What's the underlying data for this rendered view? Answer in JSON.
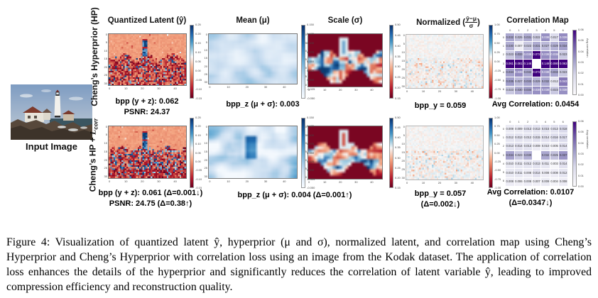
{
  "figure_caption": "Figure 4: Visualization of quantized latent ŷ, hyperprior (μ and σ), normalized latent, and correlation map using Cheng’s Hyperprior and Cheng’s Hyperprior with correlation loss using an image from the Kodak dataset. The application of correlation loss enhances the details of the hyperprior and significantly reduces the correlation of latent variable ŷ, leading to improved compression efficiency and reconstruction quality.",
  "input_image": {
    "label": "Input Image"
  },
  "rows": {
    "top": {
      "label": "Cheng’s Hyperprior (HP)"
    },
    "bottom": {
      "label_prefix": "Cheng’s HP + ",
      "label_L": "L",
      "label_sub": "corr"
    }
  },
  "column_titles": {
    "quantized": "Quantized Latent (ŷ)",
    "mean": "Mean (μ)",
    "scale": "Scale (σ)",
    "normalized_prefix": "Normalized (",
    "normalized_num": "ŷ−μ",
    "normalized_den": "σ",
    "normalized_suffix": ")",
    "correlation": "Correlation Map"
  },
  "metrics": {
    "top": {
      "bpp_total": "bpp (y + z): 0.062",
      "psnr": "PSNR: 24.37",
      "bpp_z": "bpp_z (μ + σ): 0.003",
      "bpp_y": "bpp_y = 0.059",
      "avg_corr": "Avg Correlation: 0.0454"
    },
    "bottom": {
      "bpp_total": "bpp (y + z): 0.061 ",
      "bpp_total_delta": "(Δ=0.001↓)",
      "psnr": "PSNR: 24.75 ",
      "psnr_delta": "(Δ=0.38↑)",
      "bpp_z": "bpp_z (μ + σ): 0.004 ",
      "bpp_z_delta": "(Δ=0.001↑)",
      "bpp_y": "bpp_y = 0.057",
      "bpp_y_delta": "(Δ=0.002↓)",
      "avg_corr": "Avg Correlation: 0.0107",
      "avg_corr_delta": "(Δ=0.0347↓)"
    }
  },
  "axes": {
    "heatmap_x_ticks": [
      0,
      10,
      20,
      30,
      40
    ],
    "heatmap_y_ticks": [
      0,
      5,
      10,
      15,
      20,
      25,
      30
    ],
    "corr_axis_ticks": [
      0,
      1,
      2,
      3,
      4,
      5,
      6
    ]
  },
  "colorbars": {
    "quantized_ticks": [
      "0.25",
      "0.20",
      "0.15",
      "0.10",
      "0.05",
      "0.00",
      "-0.05",
      "-0.10",
      "-0.15"
    ],
    "mean_ticks": [
      "0.150",
      "0.125",
      "0.100",
      "0.075",
      "0.050",
      "0.025",
      "0.000",
      "-0.025",
      "-0.050"
    ],
    "scale_ticks": [
      "0.50",
      "0.45",
      "0.40",
      "0.35",
      "0.30",
      "0.25",
      "0.20",
      "0.15"
    ],
    "normalized_ticks": [
      "1.00",
      "0.75",
      "0.50",
      "0.25",
      "0.00",
      "-0.25",
      "-0.50",
      "-0.75",
      "-1.00"
    ],
    "correlation_ticks": [
      "0.06",
      "0.05",
      "0.04",
      "0.03",
      "0.02",
      "0.01",
      "0.00"
    ],
    "correlation_label": "Avg correlation"
  },
  "correlation_maps": {
    "top": {
      "max": 0.06,
      "values": [
        [
          0.032,
          0.025,
          0.031,
          0.022,
          0.038,
          0.017,
          0.039
        ],
        [
          0.03,
          0.007,
          0.023,
          0.031,
          0.027,
          0.029,
          0.034
        ],
        [
          0.023,
          0.033,
          0.038,
          0.072,
          0.039,
          0.038,
          0.023
        ],
        [
          0.061,
          0.081,
          0.146,
          null,
          0.149,
          0.08,
          0.063
        ],
        [
          0.034,
          0.039,
          0.032,
          0.072,
          0.038,
          0.033,
          0.023
        ],
        [
          0.035,
          0.027,
          0.033,
          0.029,
          0.032,
          0.012,
          0.043
        ],
        [
          0.023,
          0.03,
          0.034,
          0.038,
          0.038,
          0.023,
          0.038
        ]
      ]
    },
    "bottom": {
      "max": 0.06,
      "values": [
        [
          0.009,
          0.009,
          0.013,
          0.013,
          0.015,
          0.013,
          0.018
        ],
        [
          0.012,
          0.013,
          0.012,
          0.015,
          0.014,
          0.016,
          0.017
        ],
        [
          0.013,
          0.014,
          0.013,
          0.008,
          0.01,
          0.005,
          0.014
        ],
        [
          0.034,
          0.023,
          0.03,
          null,
          0.032,
          0.025,
          0.037
        ],
        [
          0.01,
          0.011,
          0.012,
          0.013,
          0.011,
          0.003,
          0.014
        ],
        [
          0.01,
          0.011,
          0.008,
          0.014,
          0.008,
          0.008,
          0.012
        ],
        [
          0.008,
          0.006,
          0.008,
          0.007,
          0.009,
          0.004,
          0.008
        ]
      ]
    }
  },
  "palettes": {
    "rdbu": [
      [
        0,
        "#053061"
      ],
      [
        0.2,
        "#2166ac"
      ],
      [
        0.35,
        "#92c5de"
      ],
      [
        0.5,
        "#f7f7f7"
      ],
      [
        0.62,
        "#f4a582"
      ],
      [
        0.78,
        "#d6604d"
      ],
      [
        0.9,
        "#b2182b"
      ],
      [
        1,
        "#67001f"
      ]
    ],
    "blues": [
      [
        0,
        "#f7fbff"
      ],
      [
        0.35,
        "#c6dbef"
      ],
      [
        0.65,
        "#6baed6"
      ],
      [
        0.85,
        "#2171b5"
      ],
      [
        1,
        "#08306b"
      ]
    ],
    "purples": [
      [
        0,
        "#fcfbfd"
      ],
      [
        0.3,
        "#dadaeb"
      ],
      [
        0.6,
        "#9e9ac8"
      ],
      [
        0.85,
        "#6a51a3"
      ],
      [
        1,
        "#3f007d"
      ]
    ]
  }
}
